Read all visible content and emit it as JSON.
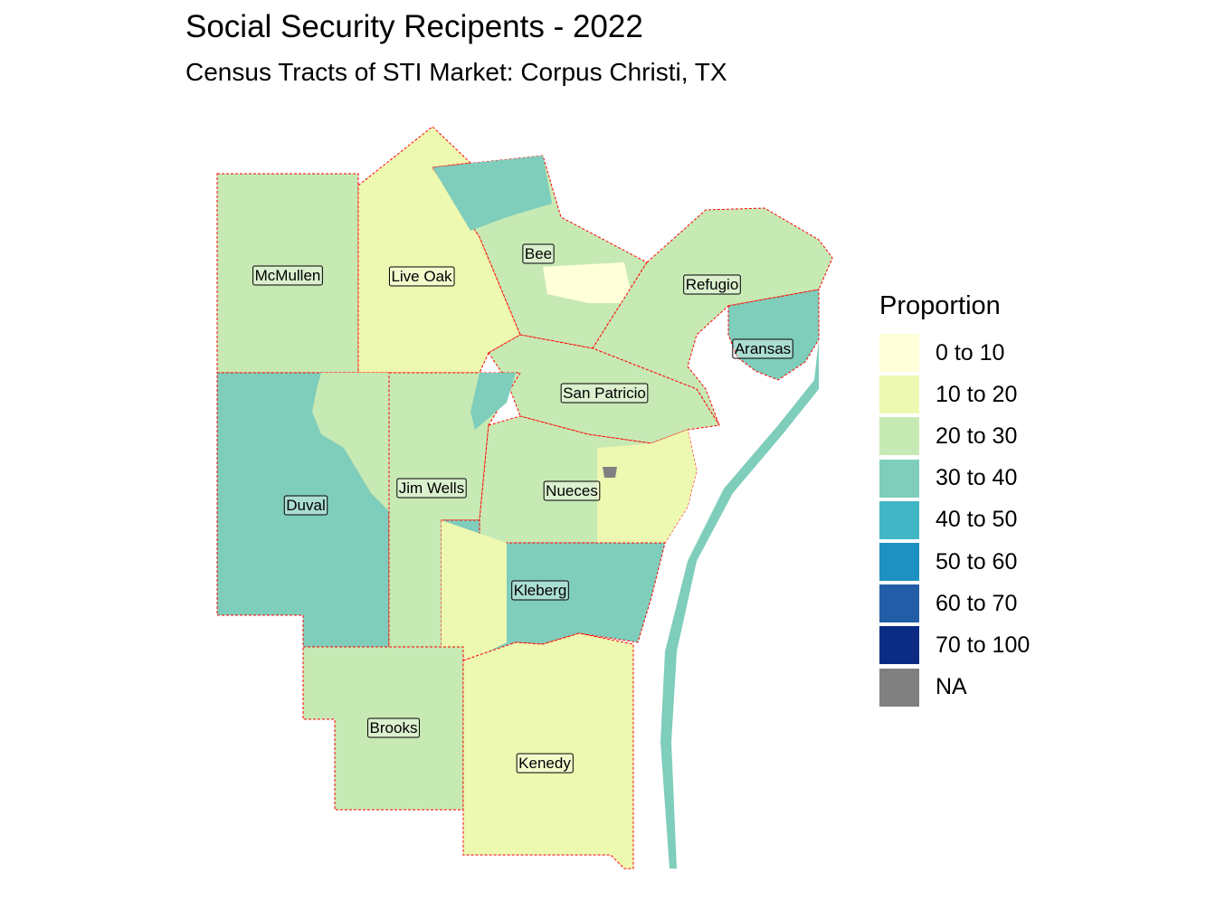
{
  "title": "Social Security Recipents - 2022",
  "subtitle": "Census Tracts of STI Market: Corpus Christi, TX",
  "legend": {
    "title": "Proportion",
    "items": [
      {
        "label": "0 to 10",
        "color": "#ffffd9"
      },
      {
        "label": "10 to 20",
        "color": "#edf8b1"
      },
      {
        "label": "20 to 30",
        "color": "#c7e9b4"
      },
      {
        "label": "30 to 40",
        "color": "#7fcdbb"
      },
      {
        "label": "40 to 50",
        "color": "#41b6c4"
      },
      {
        "label": "50 to 60",
        "color": "#1d91c0"
      },
      {
        "label": "60 to 70",
        "color": "#225ea8"
      },
      {
        "label": "70 to 100",
        "color": "#0c2c84"
      },
      {
        "label": "NA",
        "color": "#808080"
      }
    ]
  },
  "counties": [
    {
      "name": "McMullen",
      "class": "20 to 30"
    },
    {
      "name": "Live Oak",
      "class": "10 to 20"
    },
    {
      "name": "Bee",
      "class": "20 to 30"
    },
    {
      "name": "Refugio",
      "class": "20 to 30"
    },
    {
      "name": "Aransas",
      "class": "30 to 40"
    },
    {
      "name": "San Patricio",
      "class": "20 to 30"
    },
    {
      "name": "Duval",
      "class": "30 to 40"
    },
    {
      "name": "Jim Wells",
      "class": "20 to 30"
    },
    {
      "name": "Nueces",
      "class": "20 to 30"
    },
    {
      "name": "Kleberg",
      "class": "30 to 40"
    },
    {
      "name": "Brooks",
      "class": "20 to 30"
    },
    {
      "name": "Kenedy",
      "class": "10 to 20"
    }
  ]
}
